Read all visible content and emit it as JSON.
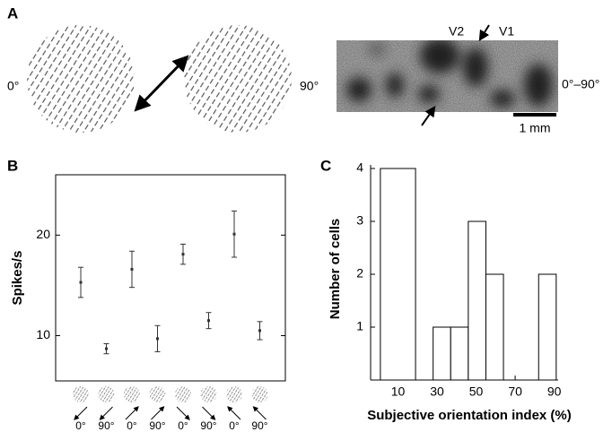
{
  "panel_a": {
    "label": "A",
    "stimulus_labels": [
      "0°",
      "90°"
    ],
    "image_labels": [
      "V2",
      "V1"
    ],
    "image_condition": "0°–90°",
    "scale_bar": "1 mm"
  },
  "chart_data": [
    {
      "type": "errorbar",
      "label": "B",
      "ylabel": "Spikes/s",
      "categories": [
        "0°",
        "90°",
        "0°",
        "90°",
        "0°",
        "90°",
        "0°",
        "90°"
      ],
      "values": [
        15.3,
        8.7,
        16.6,
        9.7,
        18.1,
        11.5,
        20.1,
        10.5
      ],
      "errors": [
        1.5,
        0.5,
        1.8,
        1.3,
        1.0,
        0.8,
        2.3,
        0.9
      ],
      "ylim": [
        5.5,
        26
      ],
      "yticks": [
        10,
        20
      ],
      "color": "#333333"
    },
    {
      "type": "histogram",
      "label": "C",
      "xlabel": "Subjective orientation index (%)",
      "ylabel": "Number of cells",
      "bins": [
        1,
        19,
        28,
        37,
        46,
        55,
        64,
        73,
        82,
        91
      ],
      "counts": [
        4,
        0,
        1,
        1,
        3,
        2,
        0,
        0,
        2
      ],
      "xlim": [
        -4,
        92
      ],
      "xticks": [
        10,
        30,
        50,
        70,
        90
      ],
      "ylim": [
        0,
        4
      ],
      "yticks": [
        1,
        2,
        3,
        4
      ],
      "color": "#ffffff"
    }
  ]
}
